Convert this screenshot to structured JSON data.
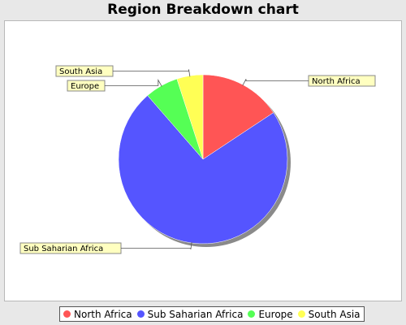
{
  "chart_data": {
    "type": "pie",
    "title": "Region Breakdown chart",
    "slices": [
      {
        "label": "North Africa",
        "value": 15.7,
        "color": "#ff5555"
      },
      {
        "label": "Sub Saharian Africa",
        "value": 72.9,
        "color": "#5555ff"
      },
      {
        "label": "Europe",
        "value": 6.4,
        "color": "#55ff55"
      },
      {
        "label": "South Asia",
        "value": 5.0,
        "color": "#ffff55"
      }
    ],
    "legend": {
      "placement": "bottom",
      "entries": [
        "North Africa",
        "Sub Saharian Africa",
        "Europe",
        "South Asia"
      ]
    }
  }
}
